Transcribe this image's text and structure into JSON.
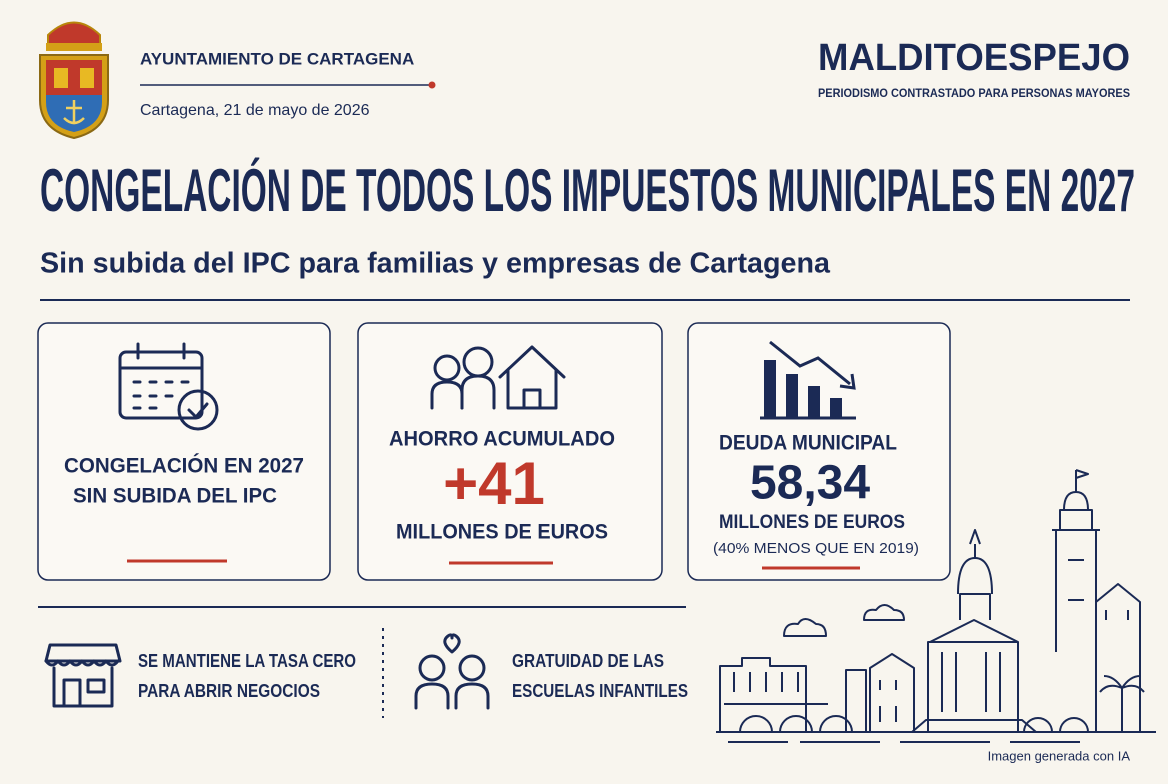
{
  "header": {
    "organization": "AYUNTAMIENTO DE CARTAGENA",
    "date": "Cartagena, 21 de mayo de 2026",
    "brand": "MALDITOESPEJO",
    "tagline": "PERIODISMO CONTRASTADO PARA PERSONAS MAYORES"
  },
  "headline": {
    "title": "CONGELACIÓN DE TODOS LOS IMPUESTOS MUNICIPALES EN 2027",
    "subtitle": "Sin subida del IPC para familias y empresas de Cartagena"
  },
  "cards": [
    {
      "lines": [
        "CONGELACIÓN EN 2027",
        "SIN SUBIDA DEL IPC"
      ]
    },
    {
      "label": "AHORRO ACUMULADO",
      "value": "+41",
      "unit": "MILLONES DE EUROS"
    },
    {
      "label": "DEUDA MUNICIPAL",
      "value": "58,34",
      "unit": "MILLONES DE EUROS",
      "note": "(40% MENOS QUE EN 2019)"
    }
  ],
  "measures": [
    {
      "lines": [
        "SE MANTIENE LA TASA CERO",
        "PARA ABRIR NEGOCIOS"
      ]
    },
    {
      "lines": [
        "GRATUIDAD DE LAS",
        "ESCUELAS INFANTILES"
      ]
    }
  ],
  "footer": {
    "credit": "Imagen generada con IA"
  }
}
